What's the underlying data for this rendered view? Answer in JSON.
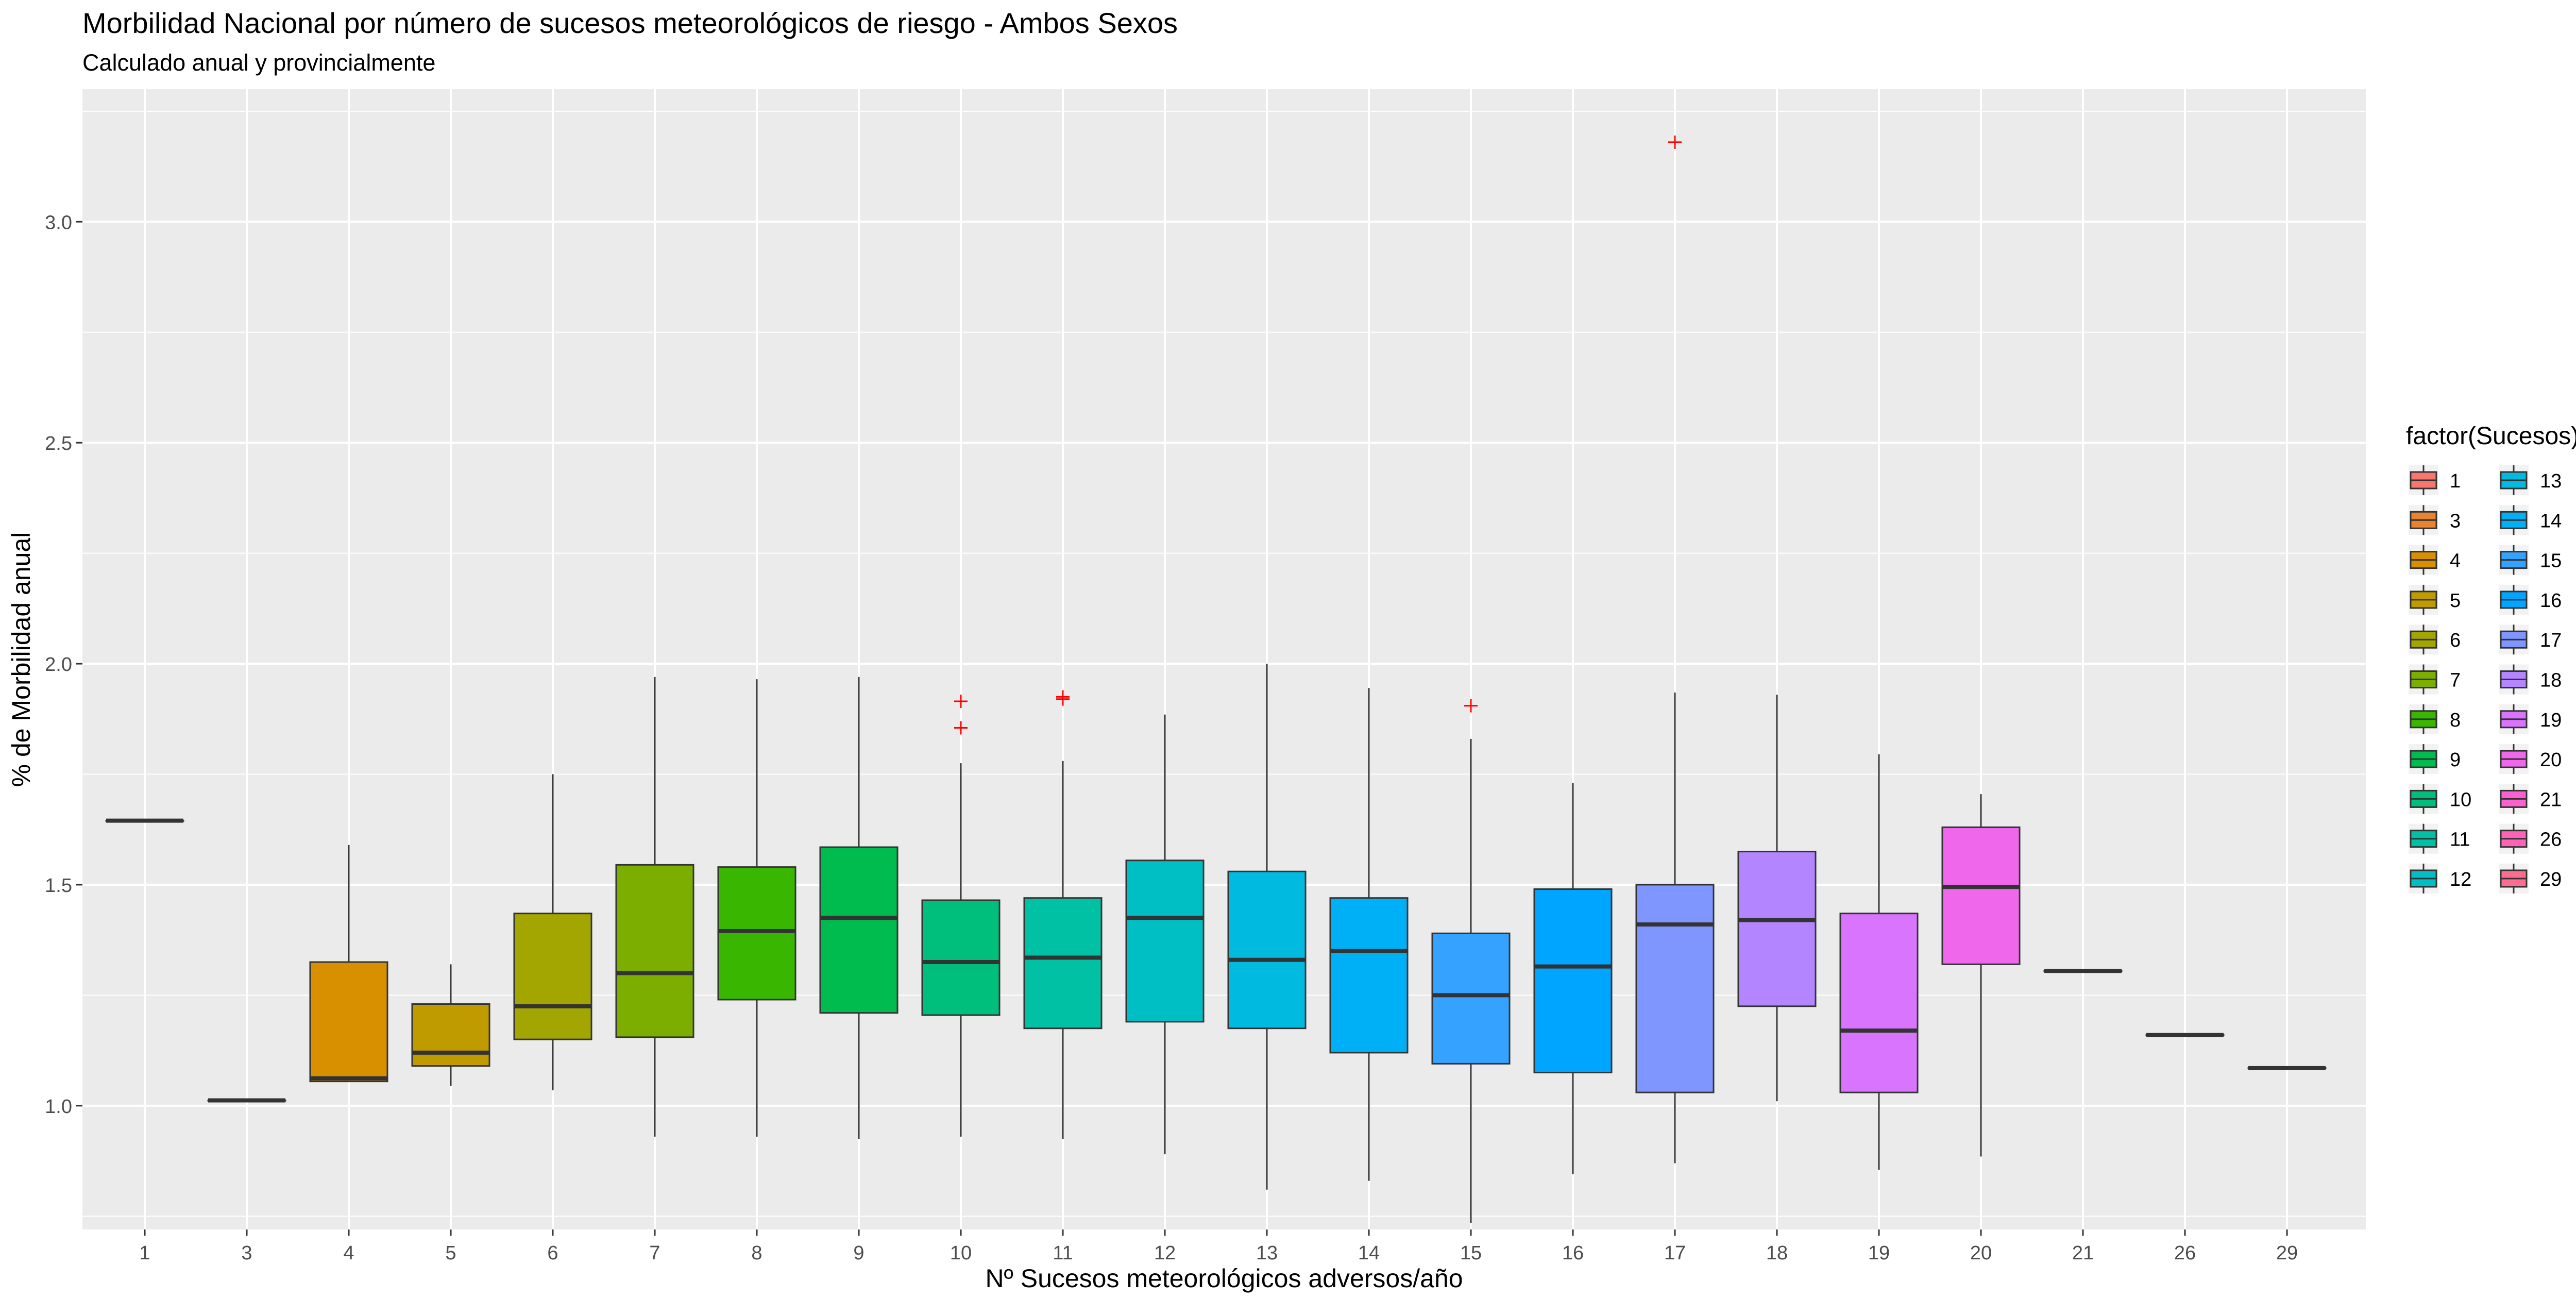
{
  "chart_data": {
    "type": "boxplot",
    "title": "Morbilidad Nacional por número de sucesos meteorológicos de riesgo - Ambos Sexos",
    "subtitle": "Calculado anual y provincialmente",
    "xlabel": "Nº Sucesos meteorológicos adversos/año",
    "ylabel": "% de Morbilidad anual",
    "ylim": [
      0.72,
      3.3
    ],
    "yticks": [
      "1.0",
      "1.5",
      "2.0",
      "2.5",
      "3.0"
    ],
    "ytick_values": [
      1.0,
      1.5,
      2.0,
      2.5,
      3.0
    ],
    "grid": true,
    "legend_title": "factor(Sucesos)",
    "legend_position": "right, two columns",
    "categories": [
      "1",
      "3",
      "4",
      "5",
      "6",
      "7",
      "8",
      "9",
      "10",
      "11",
      "12",
      "13",
      "14",
      "15",
      "16",
      "17",
      "18",
      "19",
      "20",
      "21",
      "26",
      "29"
    ],
    "colors": [
      "#F8766D",
      "#EA8331",
      "#D89000",
      "#C09B00",
      "#A3A500",
      "#7CAE00",
      "#39B600",
      "#00BB4E",
      "#00BF7D",
      "#00C1A3",
      "#00BFC4",
      "#00BAE0",
      "#00B0F6",
      "#35A2FF",
      "#00A5FF",
      "#7F96FF",
      "#B385FF",
      "#D874FD",
      "#EF67EB",
      "#FD61D1",
      "#FF63B6",
      "#FF6C91"
    ],
    "boxes": [
      {
        "category": "1",
        "min": 1.645,
        "q1": 1.645,
        "median": 1.645,
        "q3": 1.645,
        "max": 1.645,
        "outliers": []
      },
      {
        "category": "3",
        "min": 1.012,
        "q1": 1.012,
        "median": 1.012,
        "q3": 1.012,
        "max": 1.012,
        "outliers": []
      },
      {
        "category": "4",
        "min": 1.055,
        "q1": 1.055,
        "median": 1.062,
        "q3": 1.325,
        "max": 1.59,
        "outliers": []
      },
      {
        "category": "5",
        "min": 1.045,
        "q1": 1.09,
        "median": 1.12,
        "q3": 1.23,
        "max": 1.32,
        "outliers": []
      },
      {
        "category": "6",
        "min": 1.035,
        "q1": 1.15,
        "median": 1.225,
        "q3": 1.435,
        "max": 1.75,
        "outliers": []
      },
      {
        "category": "7",
        "min": 0.93,
        "q1": 1.155,
        "median": 1.3,
        "q3": 1.545,
        "max": 1.97,
        "outliers": []
      },
      {
        "category": "8",
        "min": 0.93,
        "q1": 1.24,
        "median": 1.395,
        "q3": 1.54,
        "max": 1.965,
        "outliers": []
      },
      {
        "category": "9",
        "min": 0.925,
        "q1": 1.21,
        "median": 1.425,
        "q3": 1.585,
        "max": 1.97,
        "outliers": []
      },
      {
        "category": "10",
        "min": 0.93,
        "q1": 1.205,
        "median": 1.325,
        "q3": 1.465,
        "max": 1.775,
        "outliers": [
          1.915,
          1.855
        ]
      },
      {
        "category": "11",
        "min": 0.925,
        "q1": 1.175,
        "median": 1.335,
        "q3": 1.47,
        "max": 1.78,
        "outliers": [
          1.925,
          1.92
        ]
      },
      {
        "category": "12",
        "min": 0.89,
        "q1": 1.19,
        "median": 1.425,
        "q3": 1.555,
        "max": 1.885,
        "outliers": []
      },
      {
        "category": "13",
        "min": 0.81,
        "q1": 1.175,
        "median": 1.33,
        "q3": 1.53,
        "max": 2.0,
        "outliers": []
      },
      {
        "category": "14",
        "min": 0.83,
        "q1": 1.12,
        "median": 1.35,
        "q3": 1.47,
        "max": 1.945,
        "outliers": []
      },
      {
        "category": "15",
        "min": 0.735,
        "q1": 1.095,
        "median": 1.25,
        "q3": 1.39,
        "max": 1.83,
        "outliers": [
          1.905
        ]
      },
      {
        "category": "16",
        "min": 0.845,
        "q1": 1.075,
        "median": 1.315,
        "q3": 1.49,
        "max": 1.73,
        "outliers": []
      },
      {
        "category": "17",
        "min": 0.87,
        "q1": 1.03,
        "median": 1.41,
        "q3": 1.5,
        "max": 1.935,
        "outliers": [
          3.18
        ]
      },
      {
        "category": "18",
        "min": 1.01,
        "q1": 1.225,
        "median": 1.42,
        "q3": 1.575,
        "max": 1.93,
        "outliers": []
      },
      {
        "category": "19",
        "min": 0.855,
        "q1": 1.03,
        "median": 1.17,
        "q3": 1.435,
        "max": 1.795,
        "outliers": []
      },
      {
        "category": "20",
        "min": 0.885,
        "q1": 1.32,
        "median": 1.495,
        "q3": 1.63,
        "max": 1.705,
        "outliers": []
      },
      {
        "category": "21",
        "min": 1.305,
        "q1": 1.305,
        "median": 1.305,
        "q3": 1.305,
        "max": 1.305,
        "outliers": []
      },
      {
        "category": "26",
        "min": 1.16,
        "q1": 1.16,
        "median": 1.16,
        "q3": 1.16,
        "max": 1.16,
        "outliers": []
      },
      {
        "category": "29",
        "min": 1.085,
        "q1": 1.085,
        "median": 1.085,
        "q3": 1.085,
        "max": 1.085,
        "outliers": []
      }
    ]
  }
}
